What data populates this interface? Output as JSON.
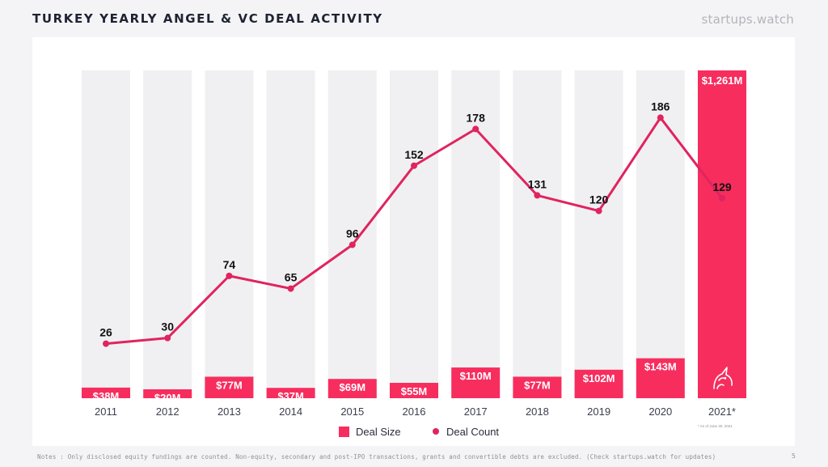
{
  "page": {
    "title": "TURKEY YEARLY ANGEL & VC DEAL ACTIVITY",
    "brand": "startups.watch",
    "footnote": "Notes : Only disclosed equity fundings are counted. Non-equity, secondary and post-IPO transactions, grants and convertible debts are excluded. (Check startups.watch for updates)",
    "page_number": "5",
    "asterisk_note": "* As of June 30, 2021"
  },
  "colors": {
    "accent": "#f72d5e",
    "line": "#e0245e",
    "track": "#f0f0f2",
    "text_dark": "#1d2233"
  },
  "chart_data": {
    "type": "bar",
    "categories": [
      "2011",
      "2012",
      "2013",
      "2014",
      "2015",
      "2016",
      "2017",
      "2018",
      "2019",
      "2020",
      "2021*"
    ],
    "series": [
      {
        "name": "Deal Size",
        "kind": "bar",
        "unit": "$M",
        "values": [
          38,
          20,
          77,
          37,
          69,
          55,
          110,
          77,
          102,
          143,
          1261
        ],
        "labels": [
          "$38M",
          "$20M",
          "$77M",
          "$37M",
          "$69M",
          "$55M",
          "$110M",
          "$77M",
          "$102M",
          "$143M",
          "$1,261M"
        ]
      },
      {
        "name": "Deal Count",
        "kind": "line",
        "values": [
          26,
          30,
          74,
          65,
          96,
          152,
          178,
          131,
          120,
          186,
          129
        ],
        "labels": [
          "26",
          "30",
          "74",
          "65",
          "96",
          "152",
          "178",
          "131",
          "120",
          "186",
          "129"
        ]
      }
    ],
    "legend": [
      "Deal Size",
      "Deal Count"
    ],
    "legend_position": "bottom",
    "grid": false,
    "highlight_category": "2021*",
    "highlight_icon": "unicorn-icon"
  }
}
